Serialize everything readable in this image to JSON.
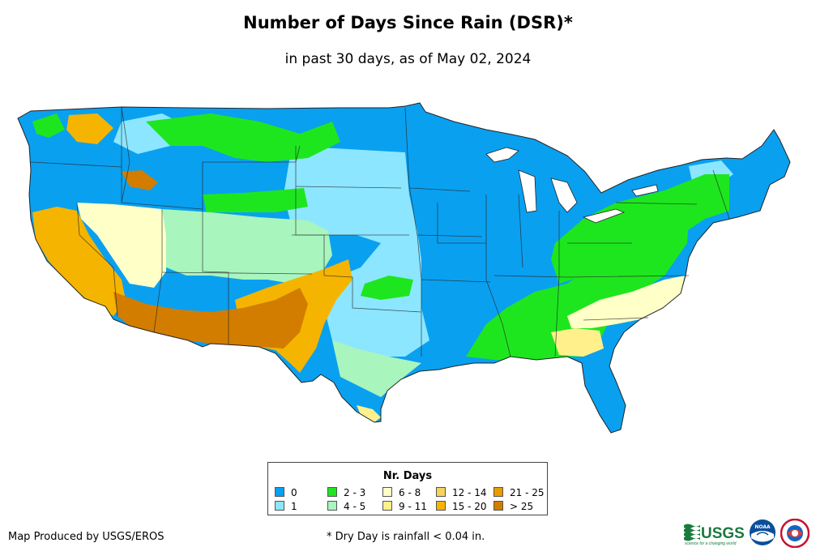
{
  "header": {
    "title": "Number of Days Since Rain (DSR)*",
    "subtitle": "in past 30 days, as of May 02, 2024"
  },
  "legend": {
    "title": "Nr. Days",
    "items": [
      {
        "label": "0",
        "color": "#0aa0f0"
      },
      {
        "label": "1",
        "color": "#8ce6ff"
      },
      {
        "label": "2 - 3",
        "color": "#1ee61e"
      },
      {
        "label": "4 - 5",
        "color": "#a8f5be"
      },
      {
        "label": "6 - 8",
        "color": "#ffffc8"
      },
      {
        "label": "9 - 11",
        "color": "#fff08c"
      },
      {
        "label": "12 - 14",
        "color": "#f5d25a"
      },
      {
        "label": "15 - 20",
        "color": "#f5b400"
      },
      {
        "label": "21 - 25",
        "color": "#eb9b00"
      },
      {
        "label": "> 25",
        "color": "#d27d00"
      }
    ]
  },
  "footer": {
    "credit": "Map Produced by USGS/EROS",
    "footnote": "* Dry Day is rainfall < 0.04 in."
  },
  "logos": {
    "usgs_text": "USGS",
    "usgs_tagline": "science for a changing world",
    "noaa_text": "NOAA"
  }
}
